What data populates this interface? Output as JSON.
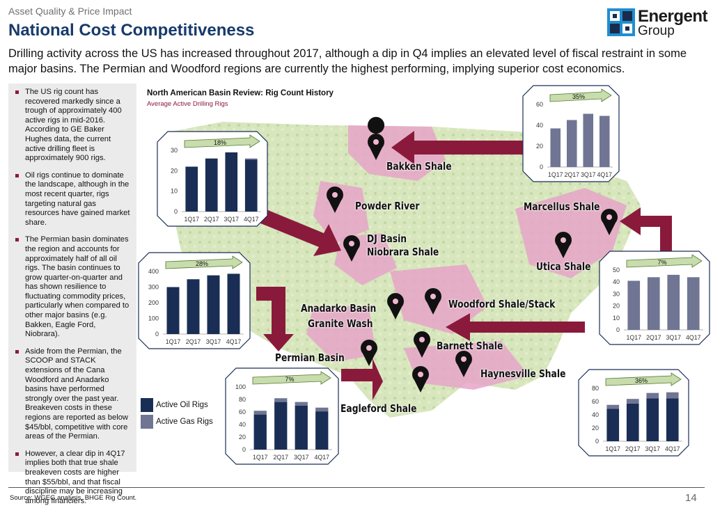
{
  "header": {
    "eyebrow": "Asset Quality & Price Impact",
    "title": "National Cost Competitiveness",
    "subtitle": "Drilling activity across the US has increased throughout 2017, although a dip in Q4 implies an elevated level of fiscal restraint in some major basins. The Permian and Woodford regions are currently the highest performing, implying superior cost economics."
  },
  "logo": {
    "name": "Energent",
    "group": "Group",
    "colors": [
      "#1f8ed1",
      "#1a2b4c"
    ]
  },
  "sidebar": {
    "bullets": [
      "The US rig count has recovered markedly since a trough of approximately 400 active rigs in mid-2016. According to GE Baker Hughes data, the current active drilling fleet is approximately 900 rigs.",
      "Oil rigs continue to dominate the landscape, although in the most recent quarter, rigs targeting natural gas resources have gained market share.",
      "The Permian basin dominates the region and accounts for approximately half of all oil rigs. The basin continues to grow quarter-on-quarter and has shown resilience to fluctuating commodity prices, particularly when compared to other major basins (e.g. Bakken, Eagle Ford, Niobrara).",
      "Aside from the Permian, the SCOOP and STACK extensions of the Cana Woodford and Anadarko basins have performed strongly over the past year. Breakeven costs in these regions are reported as below $45/bbl, competitive with core areas of the Permian.",
      "However, a clear dip in 4Q17 implies both that true shale breakeven costs are higher than $55/bbl, and that fiscal discipline may be increasing among financiers."
    ]
  },
  "map": {
    "title": "North American Basin Review: Rig Count History",
    "subtitle": "Average Active Drilling Rigs",
    "basins": {
      "bakken": "Bakken Shale",
      "powder": "Powder River",
      "dj": "DJ Basin",
      "niobrara": "Niobrara Shale",
      "marcellus": "Marcellus Shale",
      "utica": "Utica Shale",
      "anadarko": "Anadarko Basin",
      "granite": "Granite Wash",
      "woodford": "Woodford Shale/Stack",
      "barnett": "Barnett Shale",
      "haynesville": "Haynesville Shale",
      "permian": "Permian Basin",
      "eagleford": "Eagleford Shale"
    }
  },
  "legend": {
    "oil_label": "Active Oil Rigs",
    "gas_label": "Active Gas Rigs"
  },
  "colors": {
    "oil": "#1a2e55",
    "gas": "#6f7593",
    "accent": "#8a1a3c",
    "arrow_green": "#c8dcae"
  },
  "chart_data": [
    {
      "id": "bakken",
      "type": "bar",
      "categories": [
        "1Q17",
        "2Q17",
        "3Q17",
        "4Q17"
      ],
      "ylim": [
        0,
        30
      ],
      "yticks": [
        0,
        10,
        20,
        30
      ],
      "growth_label": "18%",
      "series": [
        {
          "name": "Active Oil Rigs",
          "values": [
            22,
            26,
            29,
            25.5
          ]
        },
        {
          "name": "Active Gas Rigs",
          "values": [
            0,
            0,
            0,
            0.5
          ]
        }
      ]
    },
    {
      "id": "marcellus",
      "type": "bar",
      "categories": [
        "1Q17",
        "2Q17",
        "3Q17",
        "4Q17"
      ],
      "ylim": [
        0,
        60
      ],
      "yticks": [
        0,
        20,
        40,
        60
      ],
      "growth_label": "35%",
      "series": [
        {
          "name": "Active Oil Rigs",
          "values": [
            0,
            0,
            0,
            0
          ]
        },
        {
          "name": "Active Gas Rigs",
          "values": [
            37,
            45,
            51,
            49
          ]
        }
      ]
    },
    {
      "id": "dj-niobrara",
      "type": "bar",
      "categories": [
        "1Q17",
        "2Q17",
        "3Q17",
        "4Q17"
      ],
      "ylim": [
        0,
        400
      ],
      "yticks": [
        0,
        100,
        200,
        300,
        400
      ],
      "growth_label": "28%",
      "series": [
        {
          "name": "Active Oil Rigs",
          "values": [
            300,
            350,
            375,
            385
          ]
        },
        {
          "name": "Active Gas Rigs",
          "values": [
            0,
            0,
            0,
            0
          ]
        }
      ]
    },
    {
      "id": "utica",
      "type": "bar",
      "categories": [
        "1Q17",
        "2Q17",
        "3Q17",
        "4Q17"
      ],
      "ylim": [
        0,
        50
      ],
      "yticks": [
        0,
        10,
        20,
        30,
        40,
        50
      ],
      "growth_label": "7%",
      "series": [
        {
          "name": "Active Oil Rigs",
          "values": [
            0,
            0,
            0,
            0
          ]
        },
        {
          "name": "Active Gas Rigs",
          "values": [
            41,
            44,
            46,
            44
          ]
        }
      ]
    },
    {
      "id": "permian",
      "type": "bar",
      "categories": [
        "1Q17",
        "2Q17",
        "3Q17",
        "4Q17"
      ],
      "ylim": [
        0,
        100
      ],
      "yticks": [
        0,
        20,
        40,
        60,
        80,
        100
      ],
      "growth_label": "7%",
      "series": [
        {
          "name": "Active Oil Rigs",
          "values": [
            56,
            76,
            70,
            61
          ]
        },
        {
          "name": "Active Gas Rigs",
          "values": [
            6,
            6,
            6,
            6
          ]
        }
      ]
    },
    {
      "id": "haynesville",
      "type": "bar",
      "categories": [
        "1Q17",
        "2Q17",
        "3Q17",
        "4Q17"
      ],
      "ylim": [
        0,
        80
      ],
      "yticks": [
        0,
        20,
        40,
        60,
        80
      ],
      "growth_label": "36%",
      "series": [
        {
          "name": "Active Oil Rigs",
          "values": [
            49,
            57,
            65,
            65
          ]
        },
        {
          "name": "Active Gas Rigs",
          "values": [
            6,
            7,
            8,
            9
          ]
        }
      ]
    }
  ],
  "footer": {
    "source": "Source: WGEG analysis, BHGE Rig Count.",
    "page": "14"
  }
}
